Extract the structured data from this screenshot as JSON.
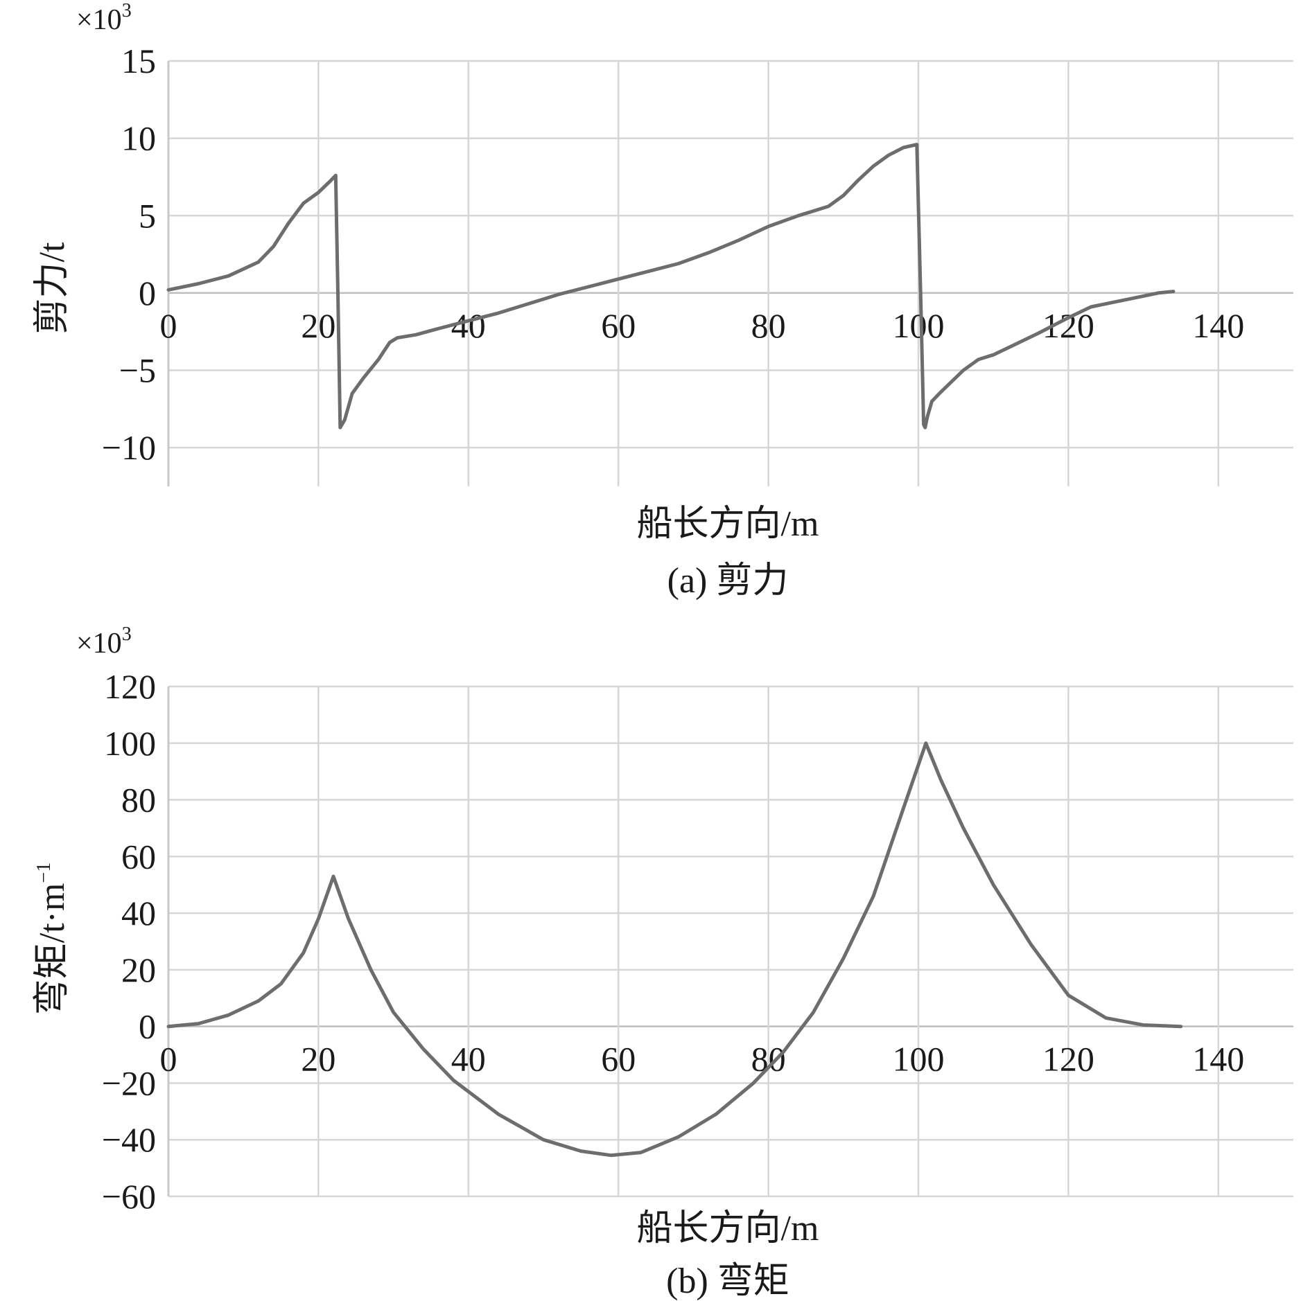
{
  "chart_data": [
    {
      "type": "line",
      "caption": "(a) 剪力",
      "xlabel": "船长方向/m",
      "ylabel": "剪力/t",
      "y_multiplier": "×10",
      "y_multiplier_exp": "3",
      "xlim": [
        0,
        150
      ],
      "ylim": [
        -12.5,
        15
      ],
      "x_ticks": [
        0,
        20,
        40,
        60,
        80,
        100,
        120,
        140
      ],
      "x_tick_labels": [
        "0",
        "20",
        "40",
        "60",
        "80",
        "100",
        "120",
        "140"
      ],
      "y_ticks": [
        -10,
        -5,
        0,
        5,
        10,
        15
      ],
      "y_tick_labels": [
        "−10",
        "−5",
        "0",
        "5",
        "10",
        "15"
      ],
      "grid": true,
      "series": [
        {
          "x": [
            0,
            4,
            8,
            12,
            14,
            16,
            18,
            20,
            21.5,
            22.3,
            22.6,
            22.9,
            23.5,
            24.5,
            26,
            28,
            29.5,
            30.5,
            33,
            36,
            40,
            44,
            48,
            52,
            56,
            60,
            64,
            68,
            72,
            76,
            80,
            84,
            88,
            90,
            92,
            94,
            96,
            98,
            99.8,
            100.3,
            100.7,
            100.9,
            101.2,
            101.8,
            103,
            106,
            108,
            110,
            113,
            116,
            120,
            123,
            126,
            130,
            132,
            134
          ],
          "y": [
            0.2,
            0.6,
            1.1,
            2.0,
            3.0,
            4.5,
            5.8,
            6.5,
            7.2,
            7.6,
            0.0,
            -8.7,
            -8.2,
            -6.5,
            -5.5,
            -4.3,
            -3.2,
            -2.9,
            -2.7,
            -2.3,
            -1.8,
            -1.3,
            -0.7,
            -0.1,
            0.4,
            0.9,
            1.4,
            1.9,
            2.6,
            3.4,
            4.3,
            5.0,
            5.6,
            6.3,
            7.3,
            8.2,
            8.9,
            9.4,
            9.6,
            0.0,
            -8.5,
            -8.7,
            -8.0,
            -7.0,
            -6.4,
            -5.0,
            -4.3,
            -4.0,
            -3.3,
            -2.6,
            -1.6,
            -0.9,
            -0.6,
            -0.2,
            0.0,
            0.1
          ]
        }
      ]
    },
    {
      "type": "line",
      "caption": "(b) 弯矩",
      "xlabel": "船长方向/m",
      "ylabel": "弯矩/t·m",
      "ylabel_sup": "−1",
      "y_multiplier": "×10",
      "y_multiplier_exp": "3",
      "xlim": [
        0,
        150
      ],
      "ylim": [
        -60,
        120
      ],
      "x_ticks": [
        0,
        20,
        40,
        60,
        80,
        100,
        120,
        140
      ],
      "x_tick_labels": [
        "0",
        "20",
        "40",
        "60",
        "80",
        "100",
        "120",
        "140"
      ],
      "y_ticks": [
        -60,
        -40,
        -20,
        0,
        20,
        40,
        60,
        80,
        100,
        120
      ],
      "y_tick_labels": [
        "−60",
        "−40",
        "−20",
        "0",
        "20",
        "40",
        "60",
        "80",
        "100",
        "120"
      ],
      "grid": true,
      "series": [
        {
          "x": [
            0,
            4,
            8,
            12,
            15,
            18,
            20,
            22,
            24,
            27,
            30,
            34,
            38,
            44,
            50,
            55,
            59,
            63,
            68,
            73,
            78,
            82,
            86,
            90,
            94,
            98,
            101,
            103,
            106,
            110,
            115,
            120,
            125,
            130,
            135
          ],
          "y": [
            0,
            1,
            4,
            9,
            15,
            26,
            38,
            53,
            38,
            20,
            5,
            -8,
            -19,
            -31,
            -40,
            -44,
            -45.5,
            -44.5,
            -39,
            -31,
            -20,
            -9,
            5,
            24,
            46,
            77,
            100,
            87,
            70,
            50,
            29,
            11,
            3,
            0.5,
            0
          ]
        }
      ]
    }
  ]
}
